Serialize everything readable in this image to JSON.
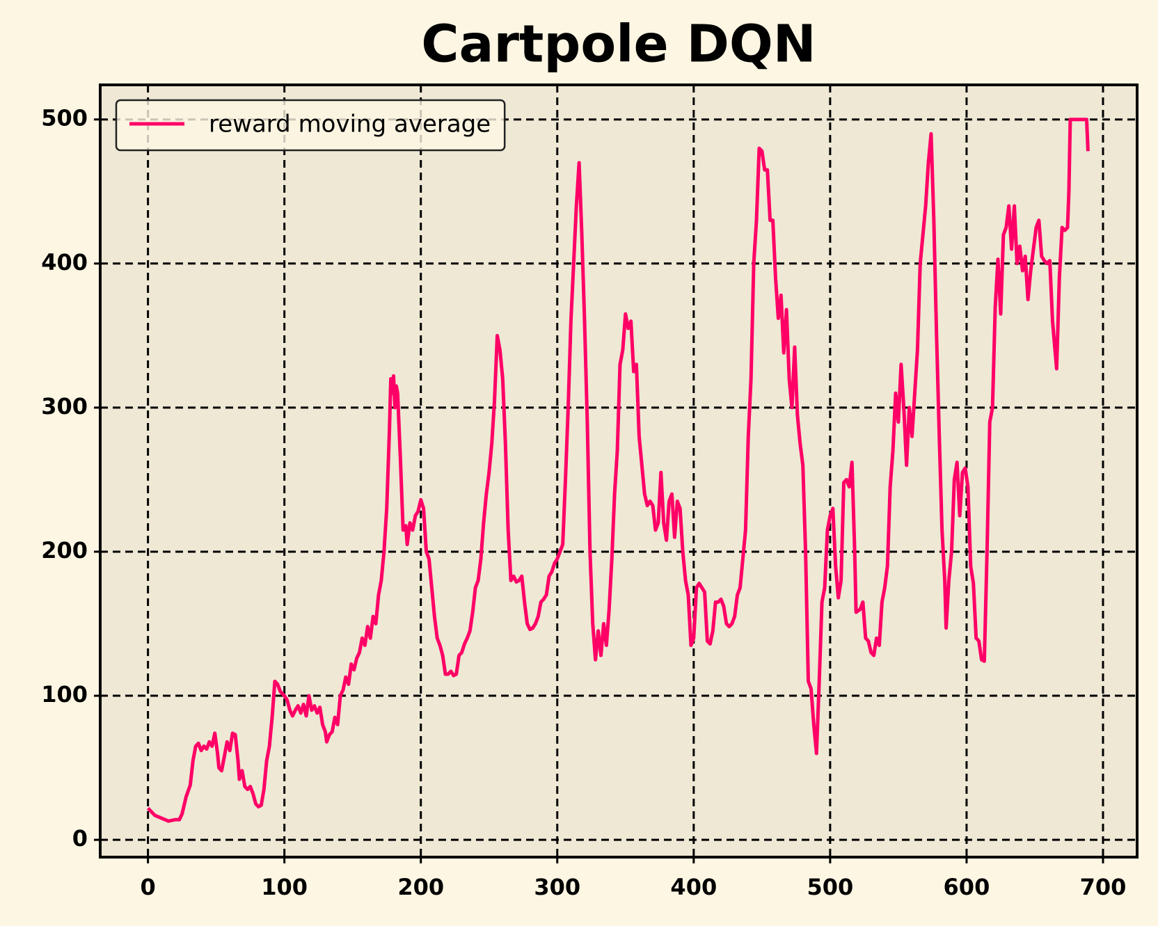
{
  "chart_data": {
    "type": "line",
    "title": "Cartpole DQN",
    "x": [
      0,
      5,
      10,
      15,
      20,
      23,
      25,
      28,
      31,
      33,
      35,
      37,
      39,
      41,
      43,
      45,
      47,
      49,
      51,
      52,
      54,
      56,
      58,
      60,
      62,
      64,
      66,
      67,
      69,
      71,
      73,
      75,
      77,
      79,
      81,
      83,
      85,
      87,
      89,
      91,
      93,
      95,
      97,
      100,
      102,
      104,
      106,
      108,
      110,
      112,
      114,
      116,
      118,
      120,
      122,
      124,
      126,
      128,
      130,
      131,
      133,
      135,
      137,
      139,
      141,
      143,
      145,
      147,
      149,
      151,
      153,
      155,
      157,
      159,
      161,
      163,
      165,
      167,
      169,
      171,
      173,
      175,
      177,
      178,
      179,
      180,
      181,
      182,
      183,
      185,
      187,
      189,
      190,
      192,
      194,
      196,
      198,
      200,
      202,
      204,
      206,
      208,
      210,
      212,
      214,
      216,
      218,
      220,
      222,
      224,
      226,
      228,
      230,
      232,
      234,
      236,
      238,
      240,
      242,
      244,
      246,
      248,
      250,
      252,
      254,
      256,
      258,
      260,
      262,
      264,
      266,
      268,
      270,
      272,
      274,
      276,
      278,
      280,
      282,
      284,
      286,
      288,
      290,
      292,
      294,
      296,
      298,
      300,
      302,
      304,
      306,
      308,
      310,
      312,
      314,
      316,
      318,
      320,
      322,
      324,
      326,
      328,
      330,
      332,
      334,
      336,
      338,
      340,
      342,
      344,
      346,
      348,
      350,
      352,
      354,
      356,
      358,
      360,
      362,
      364,
      366,
      368,
      370,
      372,
      374,
      376,
      378,
      380,
      382,
      384,
      386,
      388,
      390,
      392,
      394,
      396,
      398,
      400,
      402,
      404,
      406,
      408,
      410,
      412,
      414,
      416,
      418,
      420,
      422,
      424,
      426,
      428,
      430,
      432,
      434,
      436,
      438,
      440,
      442,
      444,
      446,
      448,
      450,
      452,
      454,
      456,
      458,
      460,
      462,
      464,
      466,
      468,
      470,
      472,
      474,
      476,
      478,
      480,
      482,
      484,
      486,
      488,
      490,
      492,
      494,
      496,
      498,
      500,
      502,
      504,
      506,
      508,
      510,
      512,
      514,
      516,
      518,
      519,
      522,
      524,
      526,
      528,
      530,
      532,
      534,
      536,
      538,
      540,
      542,
      544,
      546,
      548,
      550,
      552,
      554,
      556,
      558,
      560,
      562,
      564,
      566,
      568,
      570,
      572,
      574,
      576,
      578,
      580,
      582,
      584,
      585,
      587,
      589,
      591,
      593,
      595,
      597,
      599,
      601,
      603,
      605,
      607,
      609,
      611,
      613,
      615,
      617,
      619,
      621,
      623,
      625,
      627,
      629,
      631,
      633,
      635,
      637,
      639,
      641,
      643,
      645,
      647,
      649,
      651,
      653,
      655,
      657,
      659,
      661,
      663,
      666,
      668,
      670,
      672,
      674,
      675,
      676,
      680,
      684,
      688,
      689
    ],
    "series": [
      {
        "name": "reward moving average",
        "color": "#ff0066",
        "values": [
          22,
          17,
          15,
          13,
          14,
          14,
          18,
          30,
          38,
          55,
          65,
          67,
          62,
          65,
          63,
          68,
          65,
          74,
          60,
          50,
          48,
          58,
          68,
          62,
          74,
          73,
          55,
          42,
          48,
          37,
          35,
          37,
          32,
          25,
          23,
          24,
          35,
          55,
          65,
          85,
          110,
          108,
          103,
          100,
          97,
          90,
          86,
          90,
          93,
          88,
          94,
          86,
          100,
          90,
          93,
          88,
          92,
          80,
          75,
          68,
          73,
          75,
          85,
          80,
          100,
          104,
          113,
          108,
          122,
          118,
          126,
          130,
          140,
          135,
          148,
          140,
          155,
          150,
          170,
          180,
          200,
          230,
          285,
          320,
          310,
          322,
          300,
          315,
          310,
          265,
          215,
          218,
          205,
          220,
          215,
          225,
          228,
          236,
          230,
          200,
          195,
          175,
          155,
          140,
          135,
          128,
          115,
          115,
          117,
          114,
          115,
          128,
          130,
          136,
          140,
          145,
          158,
          175,
          180,
          195,
          220,
          240,
          255,
          275,
          305,
          350,
          340,
          320,
          275,
          215,
          180,
          183,
          179,
          180,
          183,
          165,
          150,
          146,
          147,
          150,
          155,
          165,
          167,
          170,
          183,
          186,
          192,
          195,
          200,
          205,
          250,
          300,
          360,
          400,
          440,
          470,
          420,
          360,
          290,
          200,
          150,
          125,
          145,
          128,
          150,
          135,
          160,
          195,
          240,
          270,
          330,
          340,
          365,
          355,
          360,
          325,
          330,
          280,
          260,
          240,
          232,
          235,
          232,
          215,
          220,
          255,
          220,
          208,
          235,
          240,
          210,
          235,
          230,
          200,
          180,
          170,
          135,
          140,
          175,
          178,
          175,
          172,
          138,
          136,
          145,
          165,
          165,
          167,
          162,
          150,
          148,
          150,
          155,
          170,
          175,
          195,
          215,
          280,
          320,
          400,
          430,
          480,
          478,
          465,
          465,
          430,
          430,
          390,
          362,
          378,
          338,
          368,
          320,
          300,
          342,
          295,
          275,
          260,
          200,
          110,
          105,
          80,
          60,
          110,
          165,
          175,
          215,
          225,
          230,
          190,
          168,
          180,
          248,
          250,
          245,
          262,
          200,
          158,
          160,
          165,
          140,
          138,
          130,
          128,
          140,
          135,
          165,
          175,
          190,
          245,
          270,
          310,
          290,
          330,
          300,
          260,
          300,
          280,
          310,
          340,
          400,
          420,
          440,
          470,
          490,
          430,
          350,
          280,
          215,
          180,
          147,
          180,
          200,
          250,
          262,
          225,
          255,
          258,
          245,
          190,
          178,
          140,
          138,
          125,
          124,
          200,
          290,
          300,
          370,
          403,
          365,
          420,
          425,
          440,
          410,
          440,
          400,
          412,
          395,
          405,
          375,
          395,
          410,
          425,
          430,
          405,
          402,
          400,
          402,
          360,
          327,
          390,
          425,
          423,
          425,
          450,
          500,
          500,
          500,
          500,
          478
        ]
      }
    ],
    "xlim": [
      -35,
      725
    ],
    "ylim": [
      -12,
      524
    ],
    "xticks": [
      0,
      100,
      200,
      300,
      400,
      500,
      600,
      700
    ],
    "yticks": [
      0,
      100,
      200,
      300,
      400,
      500
    ],
    "grid": true,
    "legend": "upper left"
  }
}
